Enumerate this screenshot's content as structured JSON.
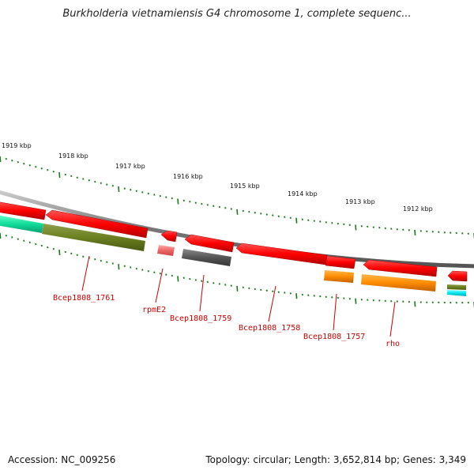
{
  "title": "Burkholderia vietnamiensis G4 chromosome 1, complete sequenc...",
  "accession": "Accession: NC_009256",
  "summary": "Topology: circular; Length: 3,652,814 bp; Genes: 3,349",
  "ticks_kbp": [
    "1919 kbp",
    "1918 kbp",
    "1917 kbp",
    "1916 kbp",
    "1915 kbp",
    "1914 kbp",
    "1913 kbp",
    "1912 kbp"
  ],
  "genes": [
    "Bcep1808_1761",
    "rpmE2",
    "Bcep1808_1759",
    "Bcep1808_1758",
    "Bcep1808_1757",
    "rho"
  ],
  "colors": {
    "cds": "#ff0000",
    "backbone": "#888888",
    "tick": "#1a7a1a",
    "gene_label": "#cc0000"
  }
}
